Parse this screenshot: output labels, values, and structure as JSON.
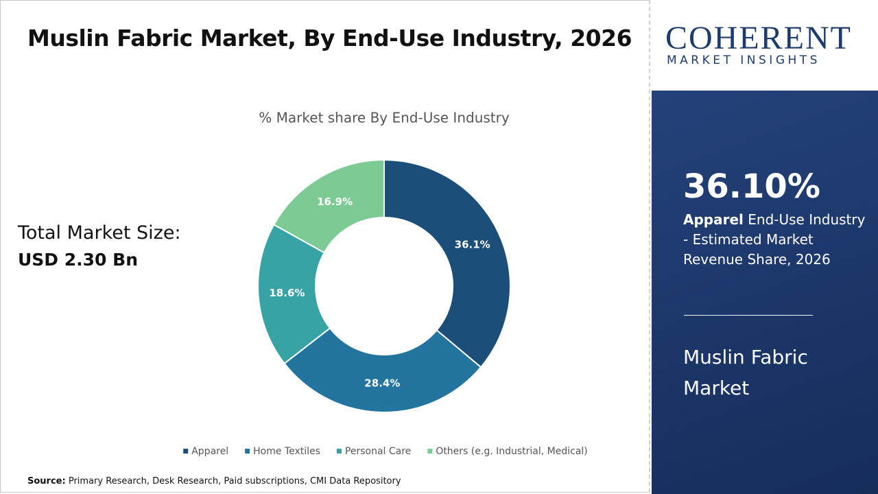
{
  "header": {
    "title": "Muslin Fabric Market, By End-Use Industry, 2026"
  },
  "summary": {
    "label": "Total Market Size:",
    "value": "USD 2.30 Bn"
  },
  "logo": {
    "name": "COHERENT",
    "tagline": "MARKET INSIGHTS"
  },
  "side_panel": {
    "share": "36.10%",
    "segment": "Apparel",
    "description": "End-Use Industry - Estimated Market Revenue Share, 2026",
    "market": "Muslin Fabric Market"
  },
  "source": {
    "label": "Source:",
    "text": "Primary Research, Desk Research, Paid subscriptions, CMI Data Repository"
  },
  "chart_data": {
    "type": "donut",
    "title": "% Market share By End-Use Industry",
    "categories": [
      "Apparel",
      "Home Textiles",
      "Personal Care",
      "Others (e.g. Industrial, Medical)"
    ],
    "values": [
      36.1,
      28.4,
      18.6,
      16.9
    ],
    "value_labels": [
      "36.1%",
      "28.4%",
      "18.6%",
      "16.9%"
    ],
    "colors": [
      "#1c4e7a",
      "#23759f",
      "#37a3a5",
      "#7ccb94"
    ]
  }
}
